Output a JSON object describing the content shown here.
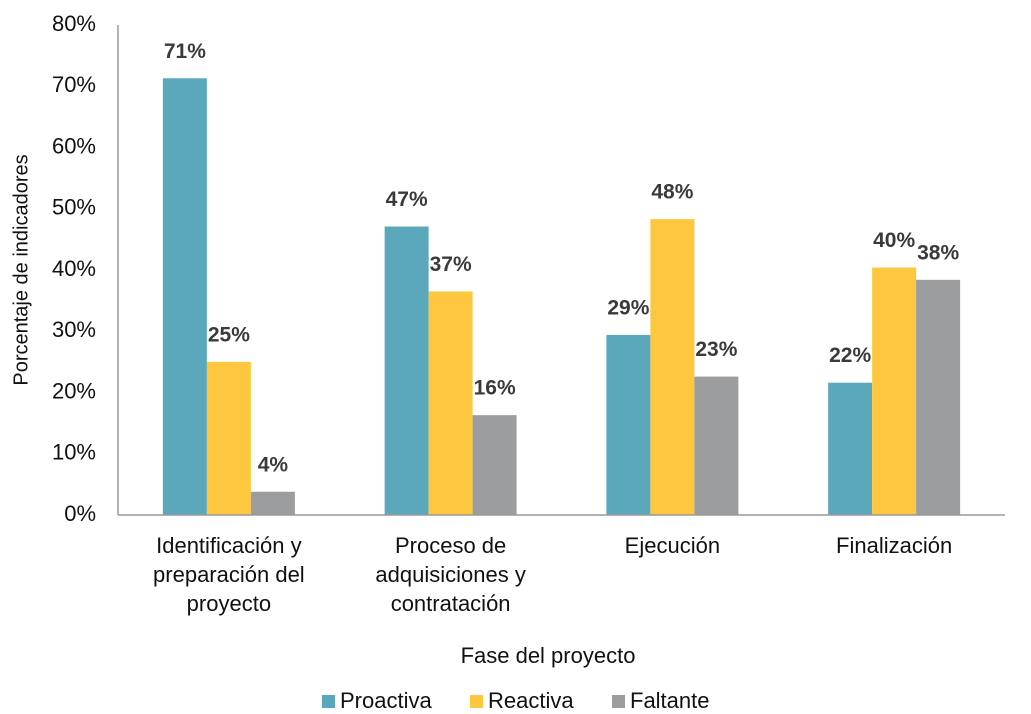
{
  "chart_data": {
    "type": "bar",
    "x_label": "Fase del proyecto",
    "y_label": "Porcentaje de indicadores",
    "categories": [
      "Identificación y preparación del proyecto",
      "Proceso de adquisiciones y contratación",
      "Ejecución",
      "Finalización"
    ],
    "series": [
      {
        "name": "Proactiva",
        "color": "#5ba7bb",
        "values": [
          71.3,
          47.1,
          29.4,
          21.6
        ],
        "value_labels": [
          "71%",
          "47%",
          "29%",
          "22%"
        ]
      },
      {
        "name": "Reactiva",
        "color": "#fdc840",
        "values": [
          25,
          36.5,
          48.3,
          40.4
        ],
        "value_labels": [
          "25%",
          "37%",
          "48%",
          "40%"
        ]
      },
      {
        "name": "Faltante",
        "color": "#9b9d9f",
        "values": [
          3.8,
          16.3,
          22.6,
          38.4
        ],
        "value_labels": [
          "4%",
          "16%",
          "23%",
          "38%"
        ]
      }
    ],
    "ylim": [
      0,
      80
    ],
    "yticks": [
      {
        "value": 0,
        "label": "0%"
      },
      {
        "value": 10,
        "label": "10%"
      },
      {
        "value": 20,
        "label": "20%"
      },
      {
        "value": 30,
        "label": "30%"
      },
      {
        "value": 40,
        "label": "40%"
      },
      {
        "value": 50,
        "label": "50%"
      },
      {
        "value": 60,
        "label": "60%"
      },
      {
        "value": 70,
        "label": "70%"
      },
      {
        "value": 80,
        "label": "80%"
      }
    ],
    "grid": false,
    "legend": "bottom"
  }
}
